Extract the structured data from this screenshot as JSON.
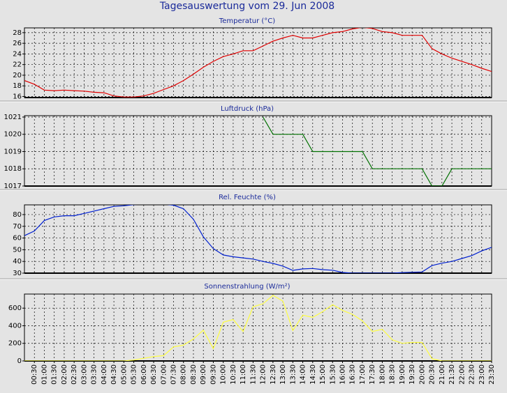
{
  "title": "Tagesauswertung vom 29. Jun 2008",
  "chart_data": [
    {
      "type": "line",
      "title": "Temperatur (°C)",
      "color": "#e00000",
      "grid": true,
      "ylim": [
        15.8,
        28.9
      ],
      "yticks": [
        16,
        18,
        20,
        22,
        24,
        26,
        28
      ],
      "values": [
        19,
        18.3,
        17.2,
        17.1,
        17.2,
        17.1,
        17.0,
        16.8,
        16.7,
        16.1,
        15.9,
        15.9,
        16.1,
        16.6,
        17.3,
        18.0,
        19.0,
        20.2,
        21.5,
        22.6,
        23.5,
        24.0,
        24.6,
        24.6,
        25.5,
        26.4,
        27.0,
        27.5,
        27.0,
        27.0,
        27.5,
        28.0,
        28.2,
        28.7,
        29,
        28.8,
        28.2,
        28.0,
        27.5,
        27.5,
        27.5,
        25.0,
        24.0,
        23.2,
        22.6,
        22.0,
        21.3,
        20.7
      ]
    },
    {
      "type": "line",
      "title": "Luftdruck (hPa)",
      "color": "#007000",
      "grid": true,
      "ylim": [
        1017,
        1021.08
      ],
      "yticks": [
        1017,
        1018,
        1019,
        1020,
        1021
      ],
      "values": [
        null,
        null,
        null,
        null,
        null,
        null,
        null,
        null,
        null,
        null,
        null,
        null,
        null,
        null,
        null,
        null,
        null,
        null,
        null,
        null,
        null,
        null,
        null,
        null,
        1021,
        1020,
        1020,
        1020,
        1020,
        1019,
        1019,
        1019,
        1019,
        1019,
        1019,
        1018,
        1018,
        1018,
        1018,
        1018,
        1018,
        1017,
        1017,
        1018,
        1018,
        1018,
        1018,
        1018
      ]
    },
    {
      "type": "line",
      "title": "Rel. Feuchte (%)",
      "color": "#0020d0",
      "grid": true,
      "ylim": [
        30,
        88.3
      ],
      "yticks": [
        30,
        40,
        50,
        60,
        70,
        80
      ],
      "values": [
        62,
        66,
        75,
        78,
        79,
        79,
        81,
        83,
        85,
        87,
        87.5,
        88.5,
        89,
        89,
        89,
        88,
        85,
        76,
        61,
        51,
        45.5,
        44,
        43,
        42,
        40,
        38.3,
        36,
        32.4,
        33.6,
        34,
        33,
        32.5,
        30.6,
        30,
        30,
        30,
        30,
        30,
        30.5,
        30.8,
        31,
        36.5,
        38.5,
        40,
        42.5,
        45,
        49,
        52
      ]
    },
    {
      "type": "line",
      "title": "Sonnenstrahlung (W/m²)",
      "color": "#ffff40",
      "grid": true,
      "ylim": [
        0,
        760
      ],
      "yticks": [
        0,
        200,
        400,
        600
      ],
      "values": [
        0,
        0,
        0,
        0,
        0,
        0,
        0,
        0,
        0,
        0,
        0,
        10,
        30,
        50,
        60,
        160,
        180,
        250,
        350,
        140,
        440,
        470,
        335,
        615,
        650,
        745,
        680,
        345,
        520,
        495,
        560,
        640,
        575,
        530,
        455,
        335,
        360,
        240,
        200,
        210,
        210,
        25,
        0,
        0,
        0,
        0,
        0,
        0
      ],
      "categories": [
        null,
        "00:30",
        "01:00",
        "01:30",
        "02:00",
        "02:30",
        "03:00",
        "03:30",
        "04:00",
        "04:30",
        "05:00",
        "05:30",
        "06:00",
        "06:30",
        "07:00",
        "07:30",
        "08:00",
        "08:30",
        "09:00",
        "09:30",
        "10:00",
        "10:30",
        "11:00",
        "11:30",
        "12:00",
        "12:30",
        "13:00",
        "13:30",
        "14:00",
        "14:30",
        "15:00",
        "15:30",
        "16:00",
        "16:30",
        "17:00",
        "17:30",
        "18:00",
        "18:30",
        "19:00",
        "19:30",
        "20:00",
        "20:30",
        "21:00",
        "21:30",
        "22:00",
        "22:30",
        "23:00",
        "23:30"
      ]
    }
  ]
}
